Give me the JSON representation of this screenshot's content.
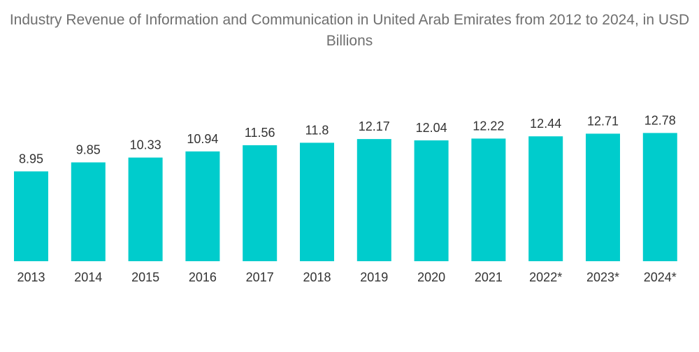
{
  "chart_data": {
    "type": "bar",
    "title": "Industry Revenue of Information and Communication in United Arab Emirates from 2012 to 2024, in USD Billions",
    "categories": [
      "2013",
      "2014",
      "2015",
      "2016",
      "2017",
      "2018",
      "2019",
      "2020",
      "2021",
      "2022*",
      "2023*",
      "2024*"
    ],
    "values": [
      8.95,
      9.85,
      10.33,
      10.94,
      11.56,
      11.8,
      12.17,
      12.04,
      12.22,
      12.44,
      12.71,
      12.78
    ],
    "value_labels": [
      "8.95",
      "9.85",
      "10.33",
      "10.94",
      "11.56",
      "11.8",
      "12.17",
      "12.04",
      "12.22",
      "12.44",
      "12.71",
      "12.78"
    ],
    "xlabel": "",
    "ylabel": "",
    "ylim": [
      0,
      13
    ],
    "grid": false,
    "legend": "none",
    "colors": {
      "bar": "#00cccc",
      "title": "#6f6f6f",
      "label": "#333333"
    }
  }
}
